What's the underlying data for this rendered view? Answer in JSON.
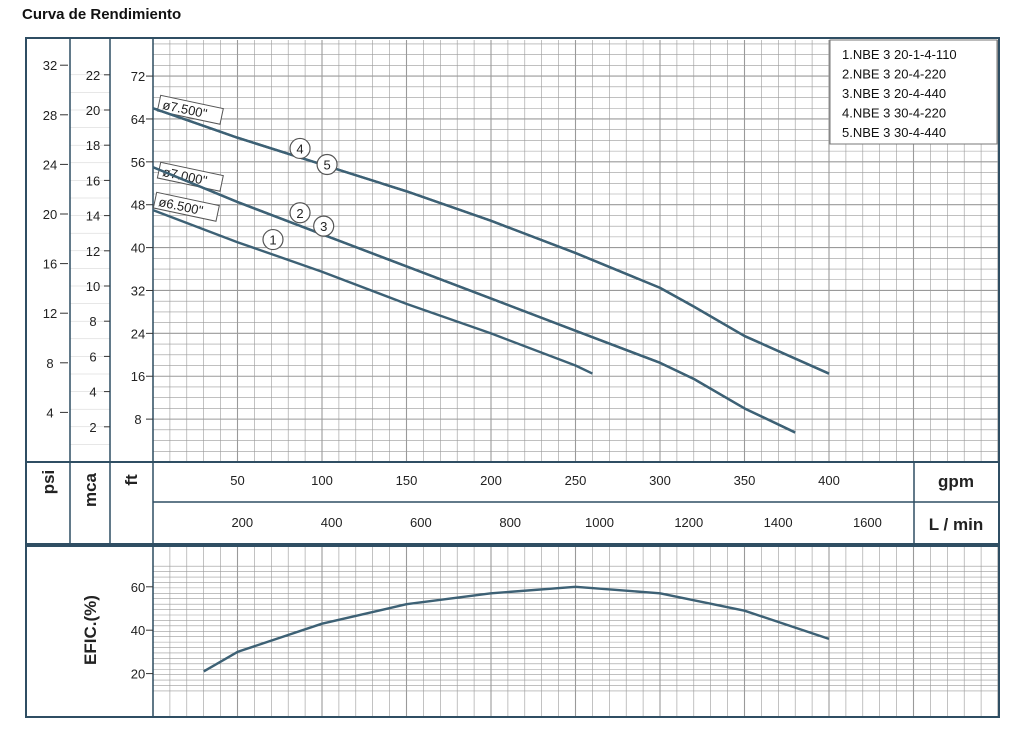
{
  "title": "Curva de Rendimiento",
  "legend": [
    "1.NBE 3 20-1-4-110",
    "2.NBE 3 20-4-220",
    "3.NBE 3 20-4-440",
    "4.NBE 3 30-4-220",
    "5.NBE 3 30-4-440"
  ],
  "colors": {
    "curve": "#3d6175",
    "grid": "#9a9a9a",
    "frame": "#2f4e63"
  },
  "units": {
    "psi": "psi",
    "mca": "mca",
    "ft": "ft",
    "gpm": "gpm",
    "lmin": "L / min",
    "efic": "EFIC.(%)"
  },
  "chart_data": [
    {
      "type": "line",
      "title": "Curva de Rendimiento",
      "xlabel": "gpm",
      "xlabel_secondary": "L / min",
      "ylabel": "ft",
      "xlim": [
        0,
        500
      ],
      "ylim": [
        0,
        84
      ],
      "grid": true,
      "legend_position": "top-right",
      "x_ticks_gpm": [
        50,
        100,
        150,
        200,
        250,
        300,
        350,
        400
      ],
      "x_ticks_lmin": [
        200,
        400,
        600,
        800,
        1000,
        1200,
        1400,
        1600
      ],
      "y_ticks_ft": [
        8,
        16,
        24,
        32,
        40,
        48,
        56,
        64,
        72
      ],
      "y_ticks_mca": [
        2,
        4,
        6,
        8,
        10,
        12,
        14,
        16,
        18,
        20,
        22
      ],
      "y_ticks_psi": [
        4,
        8,
        12,
        16,
        20,
        24,
        28,
        32
      ],
      "impeller_labels": [
        "ø7.500\"",
        "ø7.000\"",
        "ø6.500\""
      ],
      "series": [
        {
          "name": "1",
          "x": [
            0,
            50,
            100,
            150,
            200,
            250,
            260
          ],
          "y": [
            47,
            41,
            35.5,
            29.5,
            24,
            18,
            16.5
          ]
        },
        {
          "name": "2",
          "x": [
            0,
            50,
            100,
            150,
            200,
            250,
            300,
            320,
            350,
            380
          ],
          "y": [
            55,
            48.5,
            42.5,
            36.5,
            30.5,
            24.5,
            18.5,
            15.5,
            10,
            5.5
          ]
        },
        {
          "name": "3",
          "x": [
            0,
            50,
            100,
            150,
            200,
            250,
            300,
            320,
            350,
            380
          ],
          "y": [
            55,
            48.5,
            42.5,
            36.5,
            30.5,
            24.5,
            18.5,
            15.5,
            10,
            5.5
          ]
        },
        {
          "name": "4",
          "x": [
            0,
            50,
            100,
            150,
            200,
            250,
            300,
            320,
            350,
            400
          ],
          "y": [
            66,
            60.5,
            55.5,
            50.5,
            45,
            39,
            32.5,
            29,
            23.5,
            16.5
          ]
        },
        {
          "name": "5",
          "x": [
            0,
            50,
            100,
            150,
            200,
            250,
            300,
            320,
            350,
            400
          ],
          "y": [
            66,
            60.5,
            55.5,
            50.5,
            45,
            39,
            32.5,
            29,
            23.5,
            16.5
          ]
        }
      ],
      "curve_markers": [
        {
          "label": "4",
          "x": 87,
          "y": 58.5
        },
        {
          "label": "5",
          "x": 103,
          "y": 55.5
        },
        {
          "label": "2",
          "x": 87,
          "y": 46.5
        },
        {
          "label": "3",
          "x": 101,
          "y": 44
        },
        {
          "label": "1",
          "x": 71,
          "y": 41.5
        }
      ]
    },
    {
      "type": "line",
      "ylabel": "EFIC.(%)",
      "xlim": [
        0,
        500
      ],
      "ylim": [
        10,
        70
      ],
      "grid": true,
      "y_ticks": [
        20,
        40,
        60
      ],
      "series": [
        {
          "name": "",
          "x": [
            30,
            50,
            100,
            150,
            200,
            250,
            300,
            350,
            400
          ],
          "y": [
            21,
            30,
            43,
            52,
            57,
            60,
            57,
            49,
            36
          ]
        }
      ]
    }
  ]
}
